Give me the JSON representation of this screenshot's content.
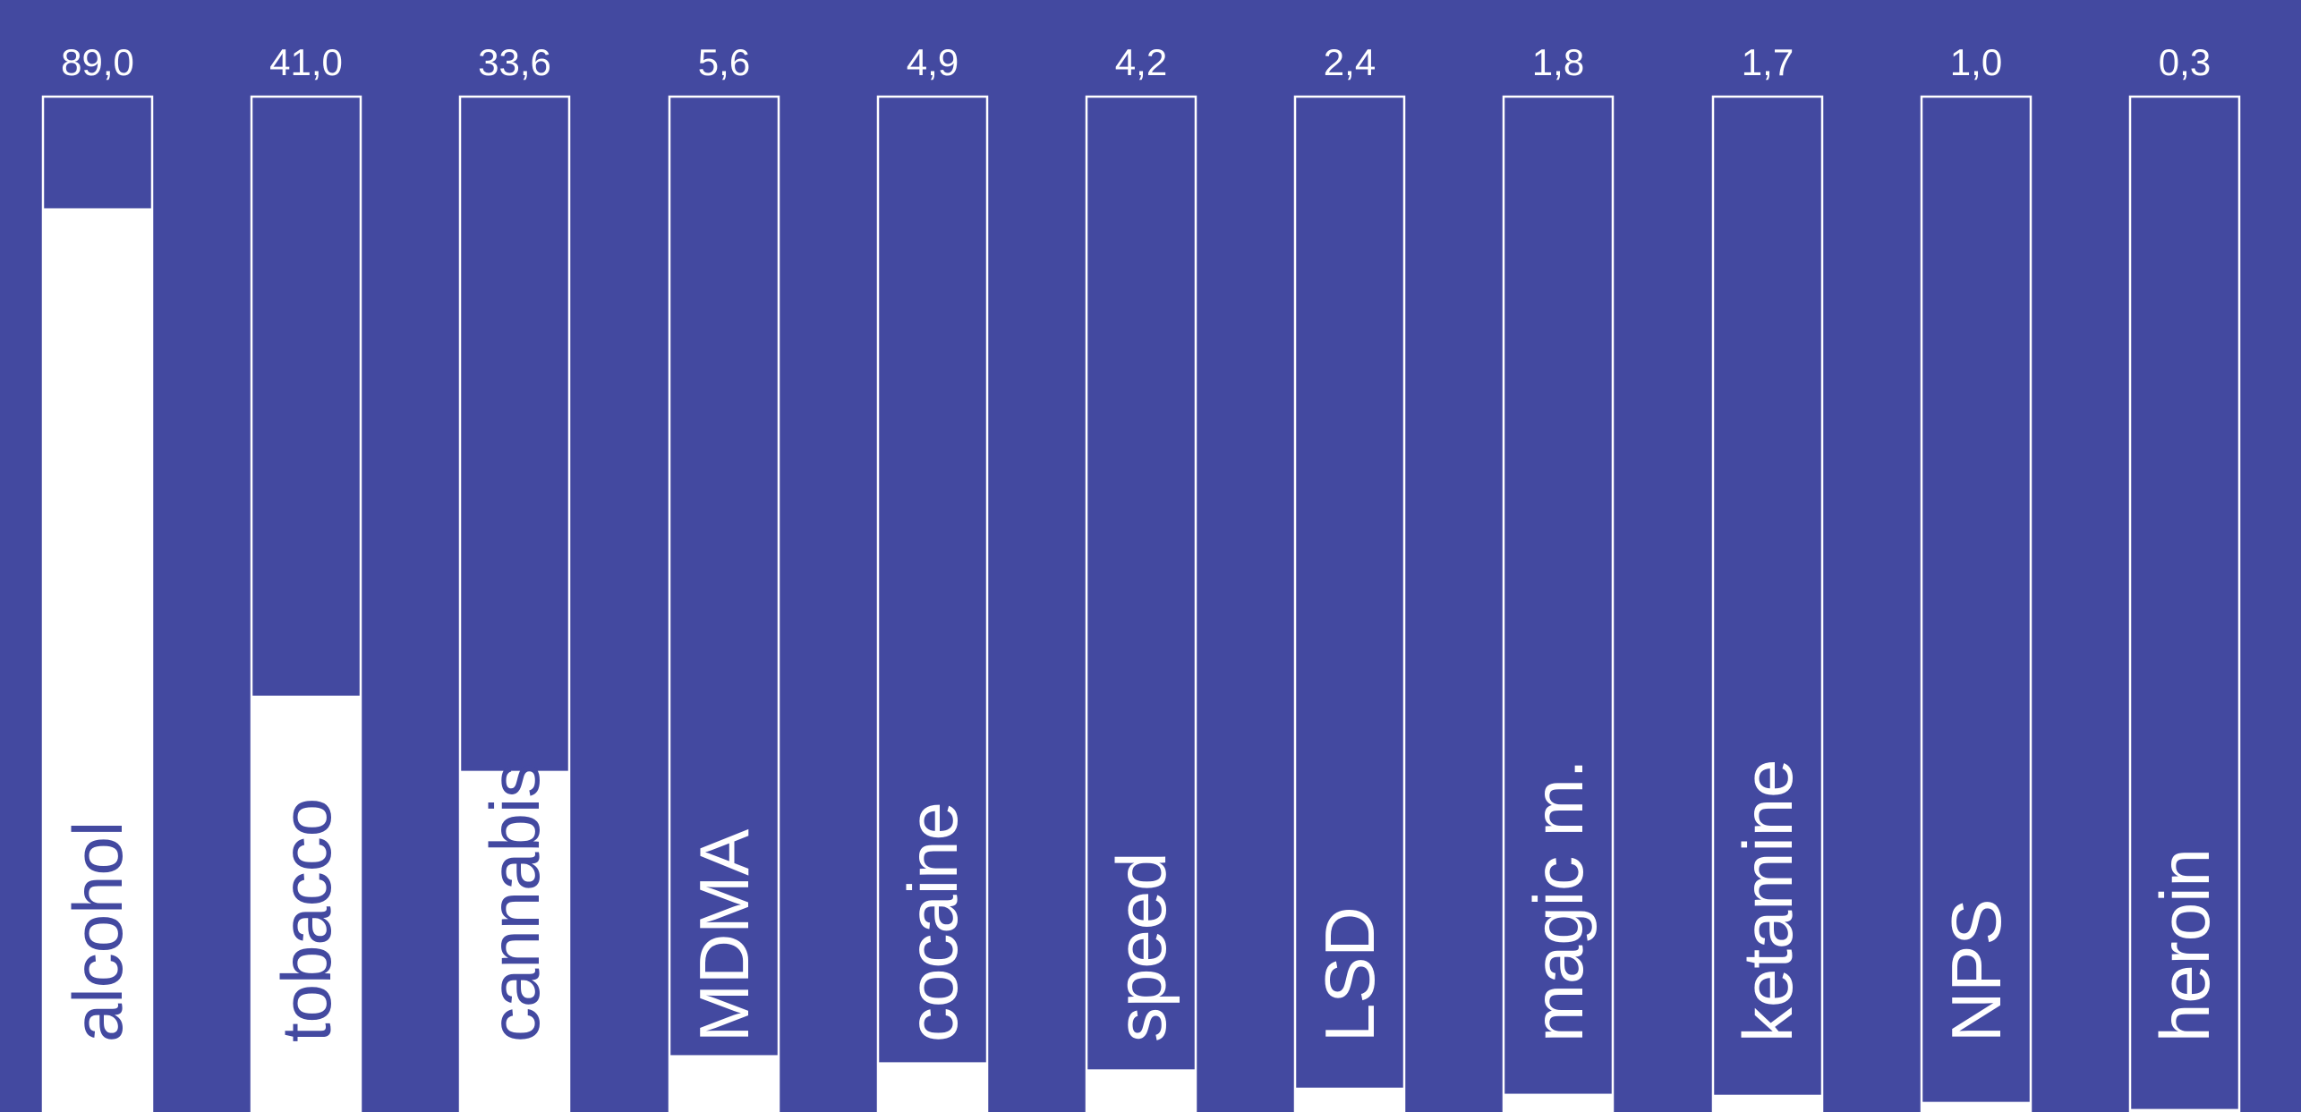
{
  "chart_data": {
    "type": "bar",
    "orientation": "vertical",
    "categories": [
      "alcohol",
      "tobacco",
      "cannabis",
      "MDMA",
      "cocaine",
      "speed",
      "LSD",
      "magic m.",
      "ketamine",
      "NPS",
      "heroin"
    ],
    "values": [
      89.0,
      41.0,
      33.6,
      5.6,
      4.9,
      4.2,
      2.4,
      1.8,
      1.7,
      1.0,
      0.3
    ],
    "value_labels": [
      "89,0",
      "41,0",
      "33,6",
      "5,6",
      "4,9",
      "4,2",
      "2,4",
      "1,8",
      "1,7",
      "1,0",
      "0,3"
    ],
    "ylim": [
      0,
      100
    ],
    "grid": false,
    "legend": "none",
    "title": "",
    "xlabel": "",
    "ylabel": ""
  },
  "colors": {
    "background": "#4349a0",
    "bar_fill": "#ffffff",
    "bar_outline": "#ffffff",
    "label_on_fill": "#4349a0",
    "label_on_background": "#ffffff"
  }
}
